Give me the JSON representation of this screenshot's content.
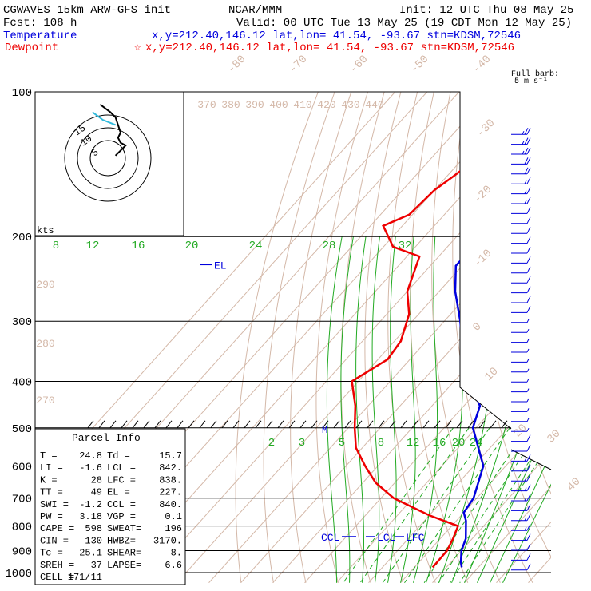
{
  "header": {
    "model": "CGWAVES 15km ARW-GFS init",
    "agency": "NCAR/MMM",
    "init": "Init: 12 UTC Thu 08 May 25",
    "fcst": "Fcst:  108 h",
    "valid": "Valid: 00 UTC Tue 13 May 25 (19 CDT Mon 12 May 25)",
    "temp_label": "Temperature",
    "temp_loc": "x,y=212.40,146.12   lat,lon= 41.54, -93.67   stn=KDSM,72546",
    "dew_label": "Dewpoint",
    "dew_loc": "x,y=212.40,146.12   lat,lon= 41.54, -93.67   stn=KDSM,72546",
    "barb_title_1": "Full barb:",
    "barb_title_2": "5 m s⁻¹"
  },
  "colors": {
    "temperature": "#0000dd",
    "dewpoint": "#ee0000",
    "isotherm": "#d4b8a8",
    "mixing_ratio": "#22aa22",
    "dry_adiabat": "#d4b8a8",
    "moist_adiabat": "#22aa22",
    "isobar": "#000000"
  },
  "chart_data": {
    "type": "skew-t",
    "pressure_levels": [
      "100",
      "200",
      "300",
      "400",
      "500",
      "600",
      "700",
      "800",
      "900",
      "1000"
    ],
    "isotherm_labels": [
      "-80",
      "-70",
      "-60",
      "-50",
      "-40",
      "-30",
      "-20",
      "-10",
      "0",
      "10",
      "20",
      "30",
      "40"
    ],
    "theta_labels_upper": [
      "370",
      "380",
      "390",
      "400",
      "410",
      "420",
      "430",
      "440"
    ],
    "theta_labels_side": [
      "290",
      "280",
      "270"
    ],
    "mixing_ratio_upper": [
      "8",
      "12",
      "16",
      "20",
      "24",
      "28",
      "32"
    ],
    "mixing_ratio_lower": [
      "2",
      "3",
      "5",
      "8",
      "12",
      "16",
      "20",
      "24"
    ],
    "temperature_profile": {
      "name": "Temperature",
      "points": [
        [
          100,
          -57
        ],
        [
          120,
          -58
        ],
        [
          150,
          -60
        ],
        [
          180,
          -61
        ],
        [
          200,
          -62
        ],
        [
          230,
          -62
        ],
        [
          260,
          -55
        ],
        [
          300,
          -45
        ],
        [
          350,
          -35
        ],
        [
          400,
          -25
        ],
        [
          450,
          -15
        ],
        [
          500,
          -11
        ],
        [
          600,
          3
        ],
        [
          700,
          9
        ],
        [
          750,
          10
        ],
        [
          780,
          13
        ],
        [
          850,
          18
        ],
        [
          900,
          20
        ],
        [
          950,
          23
        ],
        [
          975,
          24.8
        ]
      ]
    },
    "dewpoint_profile": {
      "name": "Dewpoint",
      "points": [
        [
          100,
          -80
        ],
        [
          120,
          -82
        ],
        [
          150,
          -88
        ],
        [
          160,
          -90
        ],
        [
          180,
          -91
        ],
        [
          190,
          -96
        ],
        [
          210,
          -87
        ],
        [
          220,
          -76
        ],
        [
          260,
          -70
        ],
        [
          290,
          -63
        ],
        [
          330,
          -58
        ],
        [
          360,
          -57
        ],
        [
          400,
          -62
        ],
        [
          450,
          -54
        ],
        [
          500,
          -48
        ],
        [
          550,
          -42
        ],
        [
          600,
          -34
        ],
        [
          650,
          -26
        ],
        [
          700,
          -16
        ],
        [
          760,
          0
        ],
        [
          800,
          12
        ],
        [
          850,
          14
        ],
        [
          900,
          15.5
        ],
        [
          975,
          15.7
        ]
      ]
    },
    "markers": {
      "el_label": "EL",
      "el_pressure": 227,
      "lcl_label": "LCL",
      "lcl_pressure": 842,
      "lfc_label": "LFC",
      "lfc_pressure": 838,
      "ccl_label": "CCL",
      "ccl_pressure": 840,
      "m_label": "M",
      "m_pressure": 500
    },
    "hodograph": {
      "units_label": "kts",
      "ring_labels": [
        "15",
        "10",
        "5"
      ],
      "points": [
        [
          -3,
          21
        ],
        [
          1,
          18
        ],
        [
          3,
          16
        ],
        [
          4,
          13
        ],
        [
          5,
          10
        ],
        [
          4,
          8
        ],
        [
          5,
          6
        ],
        [
          7,
          5
        ],
        [
          5,
          3
        ],
        [
          3,
          1
        ]
      ],
      "storm": [
        [
          -6,
          18
        ],
        [
          -2,
          15
        ],
        [
          3,
          13
        ]
      ]
    },
    "winds": {
      "levels": [
        110,
        130,
        150,
        170,
        190,
        210,
        230,
        250,
        270,
        290,
        310,
        330,
        350,
        370,
        390,
        410,
        430,
        450,
        470,
        490,
        510,
        530,
        550,
        570,
        590,
        610,
        630,
        650,
        670,
        690,
        710,
        730,
        750,
        770,
        790,
        810,
        830,
        850,
        870,
        890,
        910,
        930,
        950,
        970,
        990
      ],
      "speeds": [
        25,
        25,
        25,
        20,
        20,
        15,
        15,
        15,
        10,
        10,
        10,
        10,
        10,
        10,
        10,
        10,
        10,
        10,
        10,
        5,
        5,
        5,
        5,
        5,
        5,
        5,
        5,
        5,
        5,
        5,
        5,
        10,
        10,
        15,
        15,
        15,
        15,
        15,
        15,
        15,
        15,
        15,
        10,
        10,
        10
      ]
    }
  },
  "parcel": {
    "title": "Parcel Info",
    "rows": [
      {
        "l1": "T  =",
        "v1": "24.8",
        "l2": "Td =",
        "v2": "15.7"
      },
      {
        "l1": "LI =",
        "v1": "-1.6",
        "l2": "LCL =",
        "v2": "842."
      },
      {
        "l1": "K  =",
        "v1": "28",
        "l2": "LFC =",
        "v2": "838."
      },
      {
        "l1": "TT =",
        "v1": "49",
        "l2": "EL =",
        "v2": "227."
      },
      {
        "l1": "SWI =",
        "v1": "-1.2",
        "l2": "CCL =",
        "v2": "840."
      },
      {
        "l1": "PW =",
        "v1": "3.18",
        "l2": "VGP =",
        "v2": "0.1"
      },
      {
        "l1": "CAPE =",
        "v1": "598",
        "l2": "SWEAT=",
        "v2": "196"
      },
      {
        "l1": "CIN =",
        "v1": "-130",
        "l2": "HWBZ=",
        "v2": "3170."
      },
      {
        "l1": "Tc =",
        "v1": "25.1",
        "l2": "SHEAR=",
        "v2": "8."
      },
      {
        "l1": "SREH =",
        "v1": "37",
        "l2": "LAPSE=",
        "v2": "6.6"
      },
      {
        "l1": "CELL =",
        "v1": "171/11",
        "l2": "",
        "v2": ""
      }
    ]
  }
}
